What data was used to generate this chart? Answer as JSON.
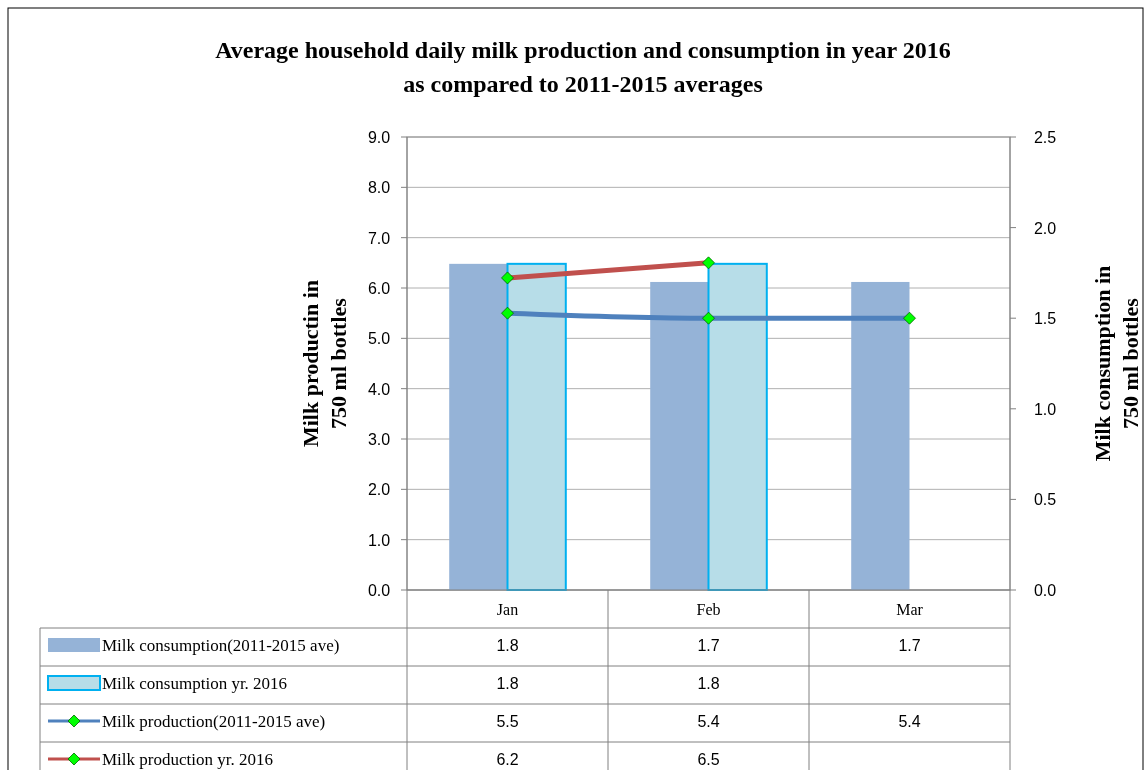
{
  "chart_data": {
    "type": "bar",
    "title": "Average household daily milk production and consumption in year 2016\nas compared to 2011-2015 averages",
    "ylabel": "Milk productin in\n750 ml bottles",
    "y2label": "Milk consumption in\n750 ml bottles",
    "categories": [
      "Jan",
      "Feb",
      "Mar"
    ],
    "series": [
      {
        "name": "Milk consumption(2011-2015 ave)",
        "axis": "y2",
        "color": "#95b3d7",
        "values": [
          1.8,
          1.7,
          1.7
        ]
      },
      {
        "name": "Milk consumption yr. 2016",
        "axis": "y2",
        "color": "#b7dde8",
        "values": [
          1.8,
          1.8,
          null
        ]
      },
      {
        "name": "Milk production(2011-2015 ave)",
        "type": "line",
        "color": "#4f81bd",
        "values": [
          5.5,
          5.4,
          5.4
        ]
      },
      {
        "name": "Milk production yr. 2016",
        "type": "line",
        "color": "#c0504d",
        "values": [
          6.2,
          6.5,
          null
        ]
      }
    ],
    "ylim": [
      0,
      9
    ],
    "yticks": [
      {
        "value": 0,
        "label": "0.0"
      },
      {
        "value": 1,
        "label": "1.0"
      },
      {
        "value": 2,
        "label": "2.0"
      },
      {
        "value": 3,
        "label": "3.0"
      },
      {
        "value": 4,
        "label": "4.0"
      },
      {
        "value": 5,
        "label": "5.0"
      },
      {
        "value": 6,
        "label": "6.0"
      },
      {
        "value": 7,
        "label": "7.0"
      },
      {
        "value": 8,
        "label": "8.0"
      },
      {
        "value": 9,
        "label": "9.0"
      }
    ],
    "y2lim": [
      0,
      2.5
    ],
    "y2ticks": [
      {
        "value": 0,
        "label": "0.0"
      },
      {
        "value": 0.5,
        "label": "0.5"
      },
      {
        "value": 1,
        "label": "1.0"
      },
      {
        "value": 1.5,
        "label": "1.5"
      },
      {
        "value": 2,
        "label": "2.0"
      },
      {
        "value": 2.5,
        "label": "2.5"
      }
    ],
    "grid": "y",
    "legend": "bottom",
    "data_labels": true,
    "marker": "diamond",
    "line_style": "solid"
  }
}
